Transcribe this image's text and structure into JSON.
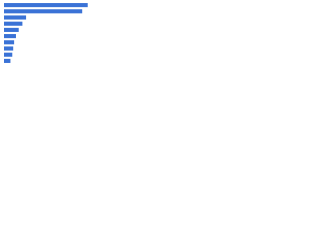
{
  "chart_data": {
    "type": "bar",
    "orientation": "horizontal",
    "categories": [
      null,
      null,
      null,
      null,
      null,
      null,
      null,
      null,
      null,
      null
    ],
    "values": [
      91,
      85,
      24,
      20,
      16,
      13,
      11,
      10,
      9,
      7
    ],
    "color": "#3a72d6",
    "xlim": [
      0,
      100
    ]
  }
}
